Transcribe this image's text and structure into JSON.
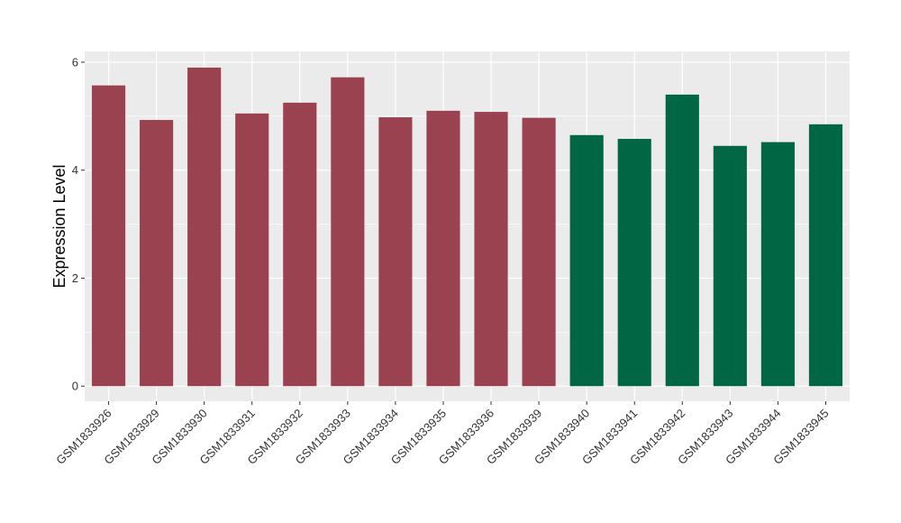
{
  "chart_data": {
    "type": "bar",
    "title": "",
    "xlabel": "",
    "ylabel": "Expression Level",
    "ylim": [
      -0.28,
      6.2
    ],
    "yticks": [
      0,
      2,
      4,
      6
    ],
    "grid": true,
    "categories": [
      "GSM1833926",
      "GSM1833929",
      "GSM1833930",
      "GSM1833931",
      "GSM1833932",
      "GSM1833933",
      "GSM1833934",
      "GSM1833935",
      "GSM1833936",
      "GSM1833939",
      "GSM1833940",
      "GSM1833941",
      "GSM1833942",
      "GSM1833943",
      "GSM1833944",
      "GSM1833945"
    ],
    "values": [
      5.57,
      4.93,
      5.9,
      5.05,
      5.25,
      5.72,
      4.98,
      5.1,
      5.08,
      4.97,
      4.65,
      4.58,
      5.4,
      4.45,
      4.52,
      4.85
    ],
    "bar_colors": [
      "#9b4250",
      "#9b4250",
      "#9b4250",
      "#9b4250",
      "#9b4250",
      "#9b4250",
      "#9b4250",
      "#9b4250",
      "#9b4250",
      "#9b4250",
      "#006644",
      "#006644",
      "#006644",
      "#006644",
      "#006644",
      "#006644"
    ],
    "panel_background": "#ebebeb",
    "grid_color": "#ffffff"
  }
}
